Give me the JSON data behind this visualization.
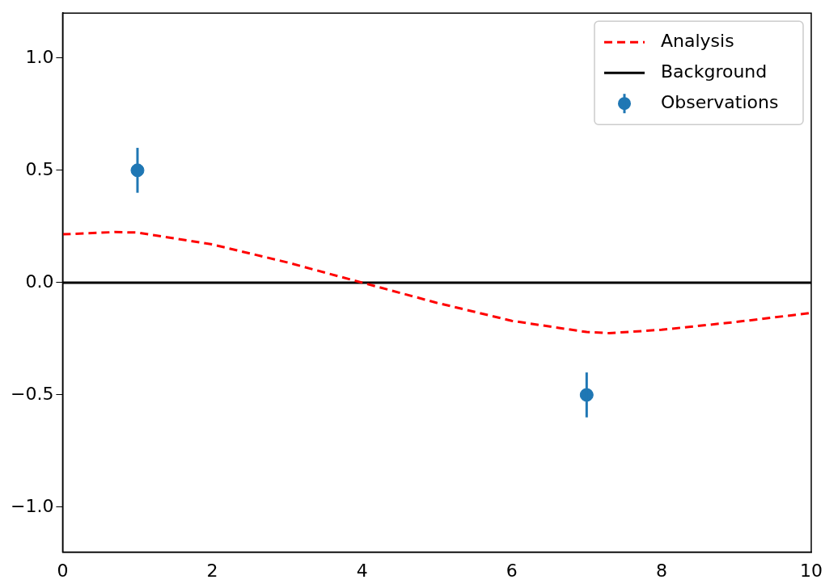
{
  "chart_data": {
    "type": "line",
    "xlim": [
      0,
      10
    ],
    "ylim": [
      -1.2,
      1.2
    ],
    "xticks": [
      0,
      2,
      4,
      6,
      8,
      10
    ],
    "yticks": [
      {
        "value": -1,
        "label": "−1.0"
      },
      {
        "value": -0.5,
        "label": "−0.5"
      },
      {
        "value": 0,
        "label": "0.0"
      },
      {
        "value": 0.5,
        "label": "0.5"
      },
      {
        "value": 1,
        "label": "1.0"
      }
    ],
    "grid": false,
    "legend": "top right",
    "series": [
      {
        "name": "Analysis",
        "type": "line",
        "color": "#ff0000",
        "line_style": "dashed",
        "marker": "none",
        "x": [
          0,
          0.7,
          1,
          2,
          3,
          4,
          5,
          6,
          7,
          7.3,
          8,
          9,
          10
        ],
        "values": [
          0.215,
          0.225,
          0.223,
          0.17,
          0.09,
          0.0,
          -0.09,
          -0.17,
          -0.22,
          -0.225,
          -0.21,
          -0.175,
          -0.135
        ]
      },
      {
        "name": "Background",
        "type": "line",
        "color": "#000000",
        "line_style": "solid",
        "marker": "none",
        "x": [
          0,
          10
        ],
        "values": [
          0,
          0
        ]
      },
      {
        "name": "Observations",
        "type": "scatter",
        "color": "#1f77b4",
        "marker": "circle",
        "x": [
          1,
          7
        ],
        "values": [
          0.5,
          -0.5
        ],
        "errors": [
          0.1,
          0.1
        ]
      }
    ]
  }
}
